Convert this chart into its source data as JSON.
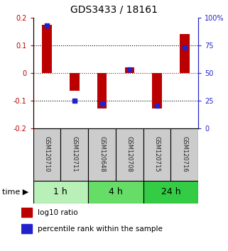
{
  "title": "GDS3433 / 18161",
  "samples": [
    "GSM120710",
    "GSM120711",
    "GSM120648",
    "GSM120708",
    "GSM120715",
    "GSM120716"
  ],
  "log10_ratio": [
    0.175,
    -0.065,
    -0.13,
    0.02,
    -0.13,
    0.14
  ],
  "percentile_rank": [
    93,
    25,
    22,
    53,
    20,
    73
  ],
  "ylim_left": [
    -0.2,
    0.2
  ],
  "ylim_right": [
    0,
    100
  ],
  "yticks_left": [
    -0.2,
    -0.1,
    0.0,
    0.1,
    0.2
  ],
  "yticks_right": [
    0,
    25,
    50,
    75,
    100
  ],
  "ytick_labels_right": [
    "0",
    "25",
    "50",
    "75",
    "100%"
  ],
  "groups": [
    {
      "label": "1 h",
      "indices": [
        0,
        1
      ],
      "color": "#b8f0b8"
    },
    {
      "label": "4 h",
      "indices": [
        2,
        3
      ],
      "color": "#66dd66"
    },
    {
      "label": "24 h",
      "indices": [
        4,
        5
      ],
      "color": "#33cc44"
    }
  ],
  "bar_width": 0.35,
  "red_color": "#bb0000",
  "blue_color": "#2222cc",
  "sample_box_color": "#cccccc",
  "sample_text_color": "#222222",
  "title_fontsize": 10,
  "axis_fontsize": 7,
  "sample_fontsize": 6,
  "legend_fontsize": 7.5,
  "time_fontsize": 9
}
